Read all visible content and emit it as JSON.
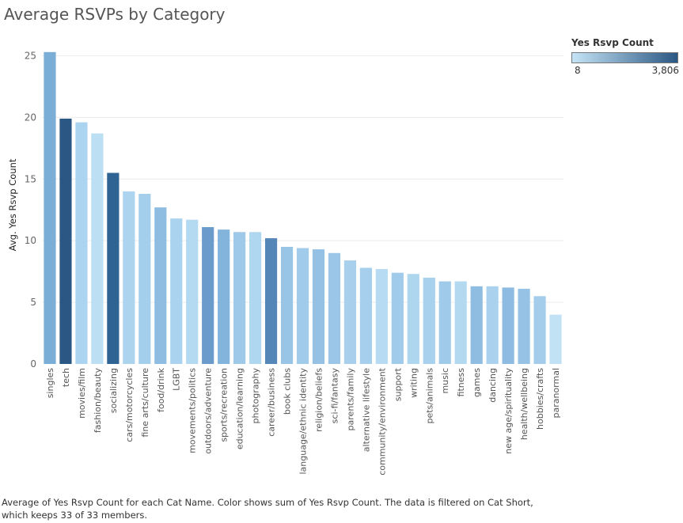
{
  "chart_data": {
    "type": "bar",
    "title": "Average RSVPs by Category",
    "ylabel": "Avg. Yes Rsvp Count",
    "xlabel": "",
    "ylim": [
      0,
      25.8
    ],
    "yticks": [
      0,
      5,
      10,
      15,
      20,
      25
    ],
    "grid": true,
    "legend": {
      "title": "Yes Rsvp Count",
      "min_label": "8",
      "max_label": "3,806",
      "min_color": "#c5e4f6",
      "max_color": "#2a5783",
      "placement": "top-right"
    },
    "categories": [
      "singles",
      "tech",
      "movies/film",
      "fashion/beauty",
      "socializing",
      "cars/motorcycles",
      "fine arts/culture",
      "food/drink",
      "LGBT",
      "movements/politics",
      "outdoors/adventure",
      "sports/recreation",
      "education/learning",
      "photography",
      "career/business",
      "book clubs",
      "language/ethnic identity",
      "religion/beliefs",
      "sci-fi/fantasy",
      "parents/family",
      "alternative lifestyle",
      "community/environment",
      "support",
      "writing",
      "pets/animals",
      "music",
      "fitness",
      "games",
      "dancing",
      "new age/spirituality",
      "health/wellbeing",
      "hobbies/crafts",
      "paranormal"
    ],
    "values": [
      25.3,
      19.9,
      19.6,
      18.7,
      15.5,
      14.0,
      13.8,
      12.7,
      11.8,
      11.7,
      11.1,
      10.9,
      10.7,
      10.7,
      10.2,
      9.5,
      9.4,
      9.3,
      9.0,
      8.4,
      7.8,
      7.7,
      7.4,
      7.3,
      7.0,
      6.7,
      6.7,
      6.3,
      6.3,
      6.2,
      6.1,
      5.5,
      4.0
    ],
    "colors": [
      "#7aaed6",
      "#2a5783",
      "#aad4ef",
      "#bcdff3",
      "#2f6394",
      "#acd4ef",
      "#a4cfec",
      "#8fbde2",
      "#a9d3ee",
      "#b4daf1",
      "#6b9bca",
      "#82b4dc",
      "#9ec9e9",
      "#b0d7f0",
      "#5486b8",
      "#98c4e6",
      "#a1cbea",
      "#94c1e4",
      "#9bc6e7",
      "#a8d0ed",
      "#a5cfec",
      "#b6dbf2",
      "#a0cbea",
      "#aed6ef",
      "#a8d1ed",
      "#9fcae9",
      "#b3d9f1",
      "#8fbde2",
      "#aad2ee",
      "#8dbbe1",
      "#96c2e5",
      "#a4cdeb",
      "#c1e2f5"
    ]
  },
  "caption": "Average of Yes Rsvp Count for each Cat Name.  Color shows sum of Yes Rsvp Count. The data is filtered on Cat Short, which keeps 33 of 33 members."
}
